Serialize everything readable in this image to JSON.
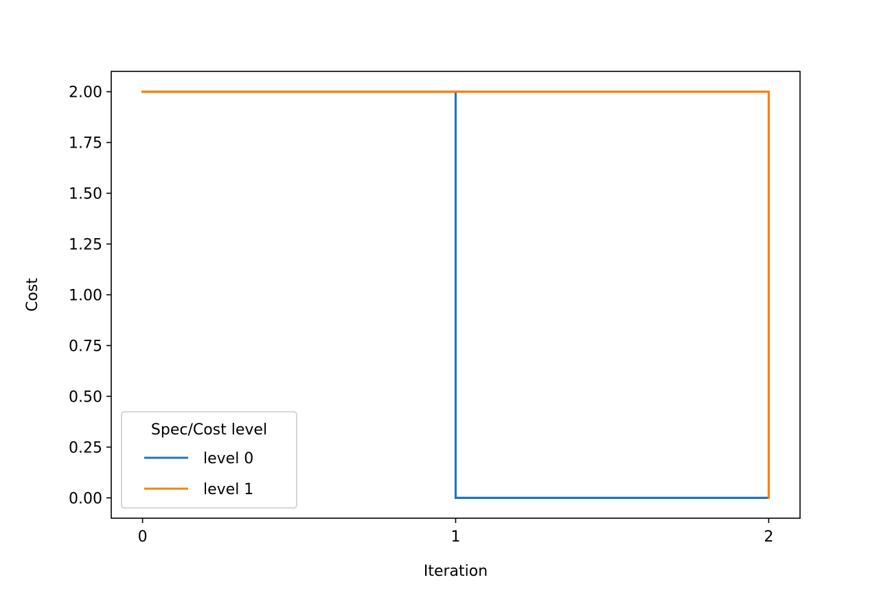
{
  "chart_data": {
    "type": "line",
    "step": "post",
    "xlabel": "Iteration",
    "ylabel": "Cost",
    "xlim": [
      -0.1,
      2.1
    ],
    "ylim": [
      -0.1,
      2.1
    ],
    "xticks": [
      0,
      1,
      2
    ],
    "xtick_labels": [
      "0",
      "1",
      "2"
    ],
    "yticks": [
      0,
      0.25,
      0.5,
      0.75,
      1.0,
      1.25,
      1.5,
      1.75,
      2.0
    ],
    "ytick_labels": [
      "0.00",
      "0.25",
      "0.50",
      "0.75",
      "1.00",
      "1.25",
      "1.50",
      "1.75",
      "2.00"
    ],
    "grid": false,
    "legend": {
      "title": "Spec/Cost level",
      "placement": "lower-left"
    },
    "series": [
      {
        "name": "level 0",
        "color": "#1f77b4",
        "x": [
          0,
          1,
          2
        ],
        "y": [
          2,
          0,
          0
        ]
      },
      {
        "name": "level 1",
        "color": "#ff7f0e",
        "x": [
          0,
          1,
          2
        ],
        "y": [
          2,
          2,
          0
        ]
      }
    ]
  }
}
